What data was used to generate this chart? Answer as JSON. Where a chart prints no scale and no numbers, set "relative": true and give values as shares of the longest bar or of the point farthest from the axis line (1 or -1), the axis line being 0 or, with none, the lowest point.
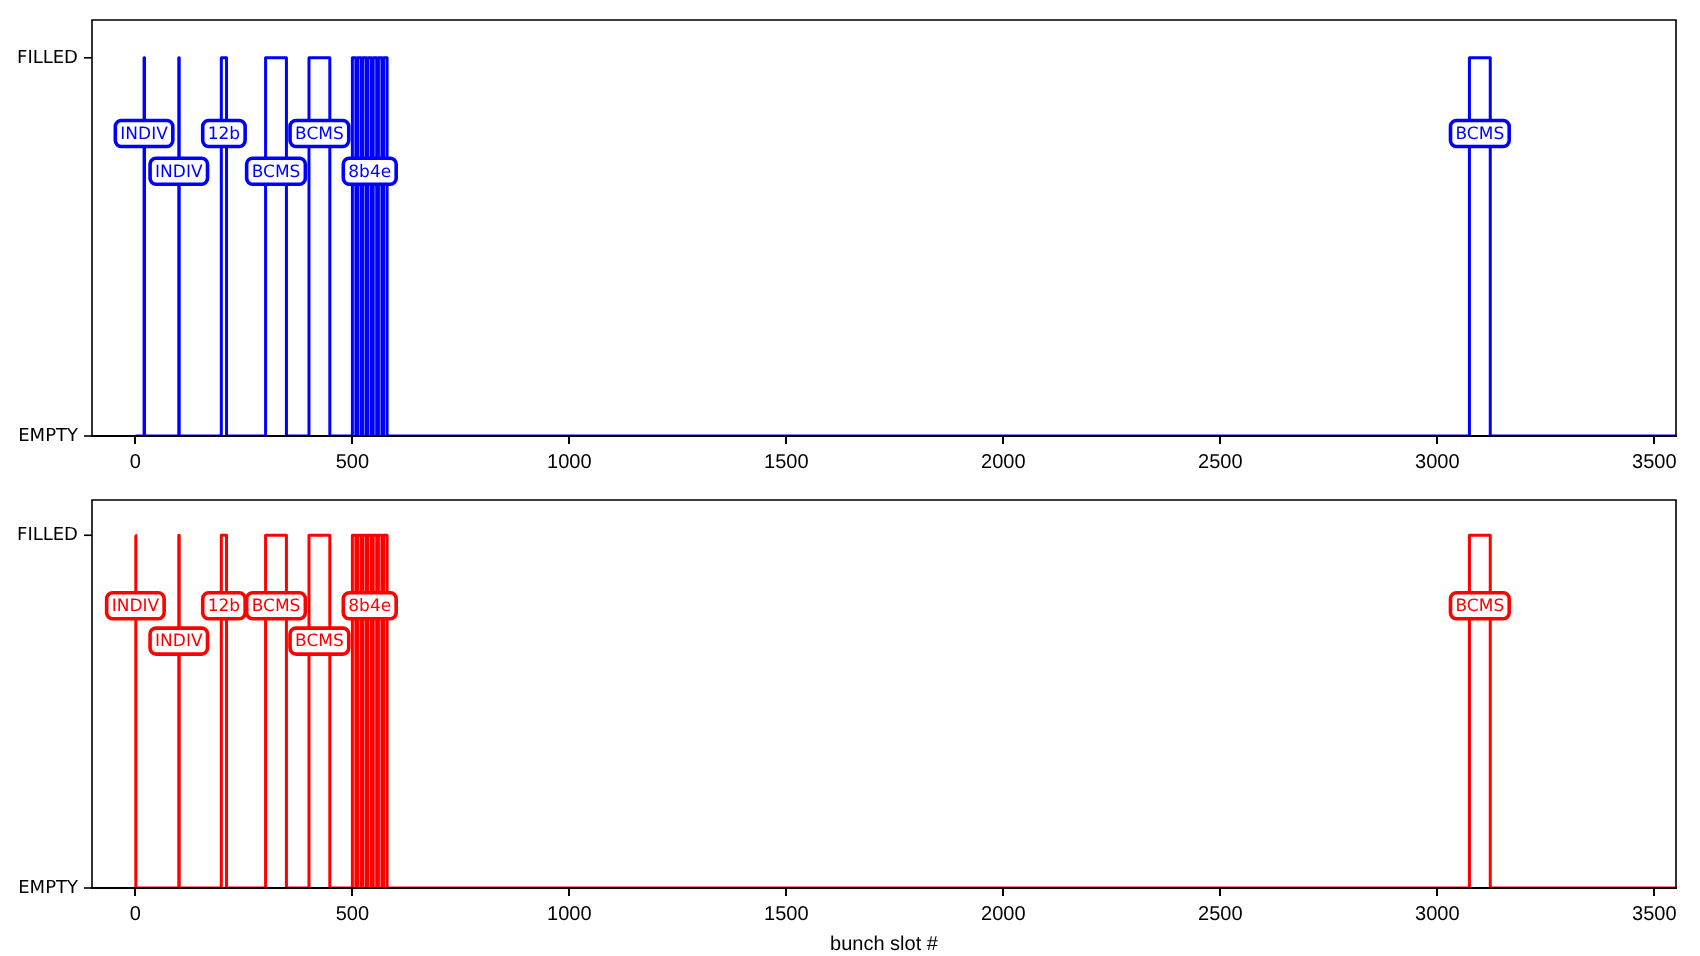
{
  "chart_data": [
    {
      "type": "step",
      "color": "#0000ff",
      "relative": true,
      "x": [
        0,
        20,
        21,
        100,
        101,
        198,
        210,
        300,
        348,
        400,
        448,
        500,
        508,
        512,
        520,
        524,
        532,
        536,
        544,
        548,
        556,
        560,
        568,
        572,
        580,
        3074,
        3122,
        3550
      ],
      "values": [
        0,
        1,
        0,
        1,
        0,
        1,
        0,
        1,
        0,
        1,
        0,
        1,
        0,
        1,
        0,
        1,
        0,
        1,
        0,
        1,
        0,
        1,
        0,
        1,
        0,
        1,
        0,
        0
      ],
      "xlim": [
        -100,
        3550
      ],
      "xticks": [
        0,
        500,
        1000,
        1500,
        2000,
        2500,
        3000,
        3500
      ],
      "annotations": [
        "FILLED",
        "EMPTY",
        {
          "text": "INDIV",
          "x": 20,
          "y": 0.8
        },
        {
          "text": "INDIV",
          "x": 100,
          "y": 0.7
        },
        {
          "text": "12b",
          "x": 204,
          "y": 0.8
        },
        {
          "text": "BCMS",
          "x": 324,
          "y": 0.7
        },
        {
          "text": "BCMS",
          "x": 424,
          "y": 0.8
        },
        {
          "text": "8b4e",
          "x": 540,
          "y": 0.7
        },
        {
          "text": "BCMS",
          "x": 3098,
          "y": 0.8
        }
      ]
    },
    {
      "type": "step",
      "color": "#ff0000",
      "xlabel": "bunch slot #",
      "relative": true,
      "x": [
        0,
        1,
        100,
        101,
        198,
        210,
        300,
        348,
        400,
        448,
        500,
        508,
        512,
        520,
        524,
        532,
        536,
        544,
        548,
        556,
        560,
        568,
        572,
        580,
        3074,
        3122,
        3550
      ],
      "values": [
        1,
        0,
        1,
        0,
        1,
        0,
        1,
        0,
        1,
        0,
        1,
        0,
        1,
        0,
        1,
        0,
        1,
        0,
        1,
        0,
        1,
        0,
        1,
        0,
        1,
        0,
        0
      ],
      "xlim": [
        -100,
        3550
      ],
      "xticks": [
        0,
        500,
        1000,
        1500,
        2000,
        2500,
        3000,
        3500
      ],
      "annotations": [
        "FILLED",
        "EMPTY",
        {
          "text": "INDIV",
          "x": 0,
          "y": 0.8
        },
        {
          "text": "INDIV",
          "x": 100,
          "y": 0.7
        },
        {
          "text": "12b",
          "x": 204,
          "y": 0.8
        },
        {
          "text": "BCMS",
          "x": 324,
          "y": 0.8
        },
        {
          "text": "BCMS",
          "x": 424,
          "y": 0.7
        },
        {
          "text": "8b4e",
          "x": 540,
          "y": 0.8
        },
        {
          "text": "BCMS",
          "x": 3098,
          "y": 0.8
        }
      ]
    }
  ]
}
